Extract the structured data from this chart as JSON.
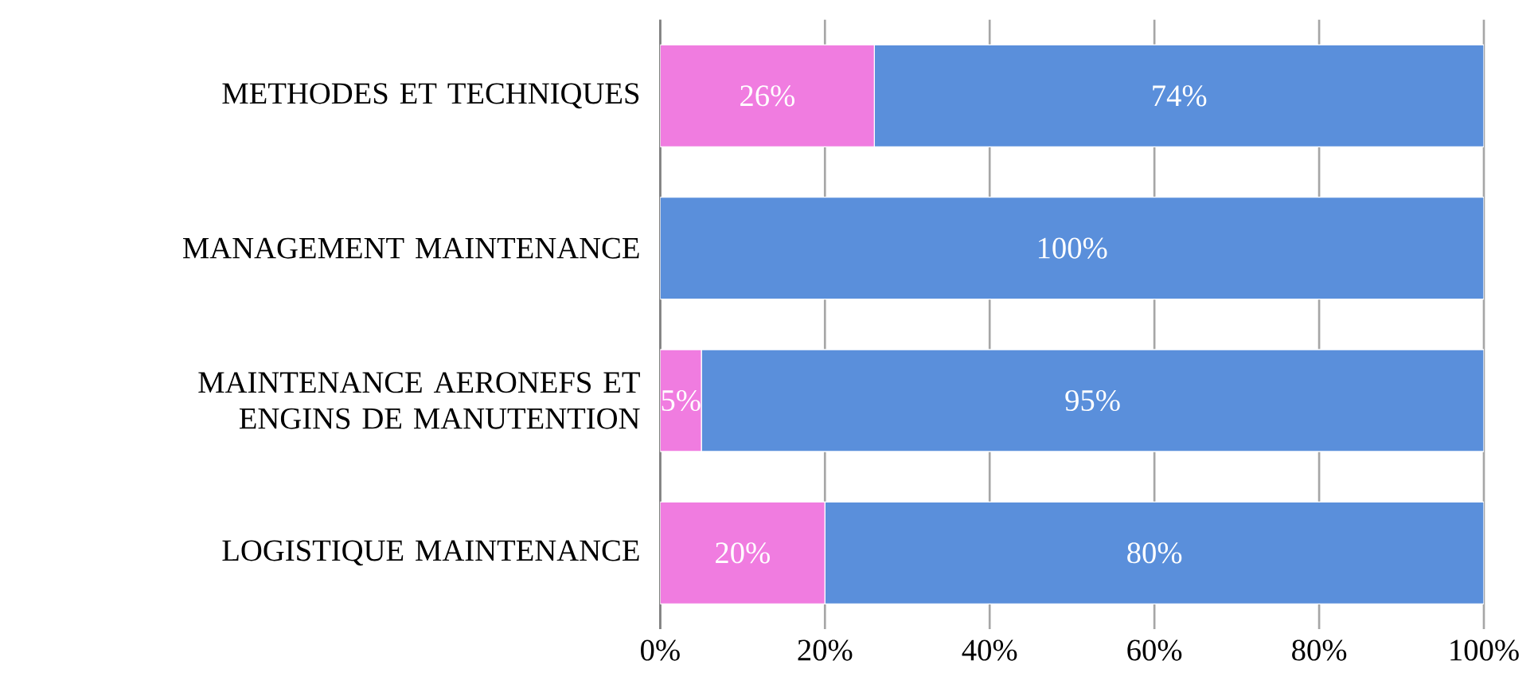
{
  "chart_data": {
    "type": "bar",
    "orientation": "horizontal",
    "stacked": true,
    "categories": [
      "METHODES ET TECHNIQUES",
      "MANAGEMENT MAINTENANCE",
      "MAINTENANCE AERONEFS ET ENGINS DE MANUTENTION",
      "LOGISTIQUE MAINTENANCE"
    ],
    "series": [
      {
        "color": "#f07ce0",
        "values": [
          26,
          0,
          5,
          20
        ],
        "value_labels": [
          "26%",
          null,
          "5%",
          "20%"
        ]
      },
      {
        "color": "#5a8fdb",
        "values": [
          74,
          100,
          95,
          80
        ],
        "value_labels": [
          "74%",
          "100%",
          "95%",
          "80%"
        ]
      }
    ],
    "xlim": [
      0,
      100
    ],
    "xticks": [
      {
        "value": 0,
        "label": "0%"
      },
      {
        "value": 20,
        "label": "20%"
      },
      {
        "value": 40,
        "label": "40%"
      },
      {
        "value": 60,
        "label": "60%"
      },
      {
        "value": 80,
        "label": "80%"
      },
      {
        "value": 100,
        "label": "100%"
      }
    ],
    "grid": "x"
  }
}
